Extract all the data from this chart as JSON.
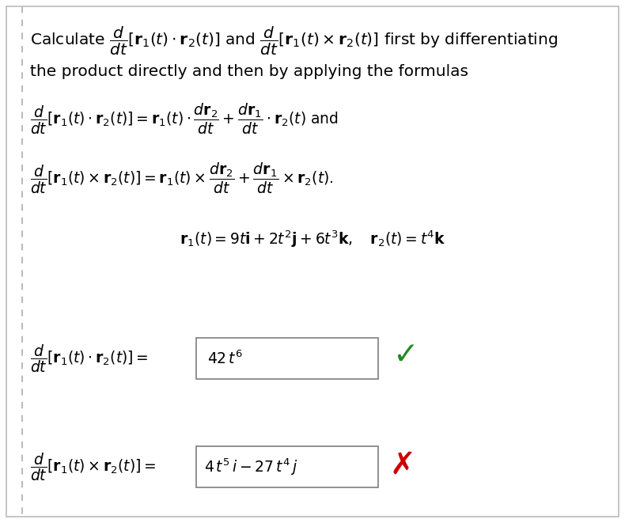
{
  "bg_color": "#ffffff",
  "border_color": "#bbbbbb",
  "text_color": "#000000",
  "green_color": "#228B22",
  "red_color": "#cc0000",
  "box_color": "#888888",
  "fig_width": 7.9,
  "fig_height": 6.61,
  "dpi": 100,
  "line1": "Calculate $\\dfrac{d}{dt}[\\mathbf{r}_1(t) \\cdot \\mathbf{r}_2(t)]$ and $\\dfrac{d}{dt}[\\mathbf{r}_1(t) \\times \\mathbf{r}_2(t)]$ first by differentiating",
  "line2": "the product directly and then by applying the formulas",
  "formula1": "$\\dfrac{d}{dt}[\\mathbf{r}_1(t) \\cdot \\mathbf{r}_2(t)] = \\mathbf{r}_1(t) \\cdot \\dfrac{d\\mathbf{r}_2}{dt} + \\dfrac{d\\mathbf{r}_1}{dt} \\cdot \\mathbf{r}_2(t)$ and",
  "formula2": "$\\dfrac{d}{dt}[\\mathbf{r}_1(t) \\times \\mathbf{r}_2(t)] = \\mathbf{r}_1(t) \\times \\dfrac{d\\mathbf{r}_2}{dt} + \\dfrac{d\\mathbf{r}_1}{dt} \\times \\mathbf{r}_2(t).$",
  "given": "$\\mathbf{r}_1(t) = 9t\\mathbf{i} + 2t^2\\mathbf{j} + 6t^3\\mathbf{k}, \\quad \\mathbf{r}_2(t) = t^4\\mathbf{k}$",
  "answer1_label": "$\\dfrac{d}{dt}[\\mathbf{r}_1(t) \\cdot \\mathbf{r}_2(t)] =$",
  "answer1_box": "$42\\,t^6$",
  "answer2_label": "$\\dfrac{d}{dt}[\\mathbf{r}_1(t) \\times \\mathbf{r}_2(t)] =$",
  "answer2_box": "$4\\,t^5\\,i - 27\\,t^4\\,j$",
  "check_mark": "✓",
  "x_mark": "✗"
}
